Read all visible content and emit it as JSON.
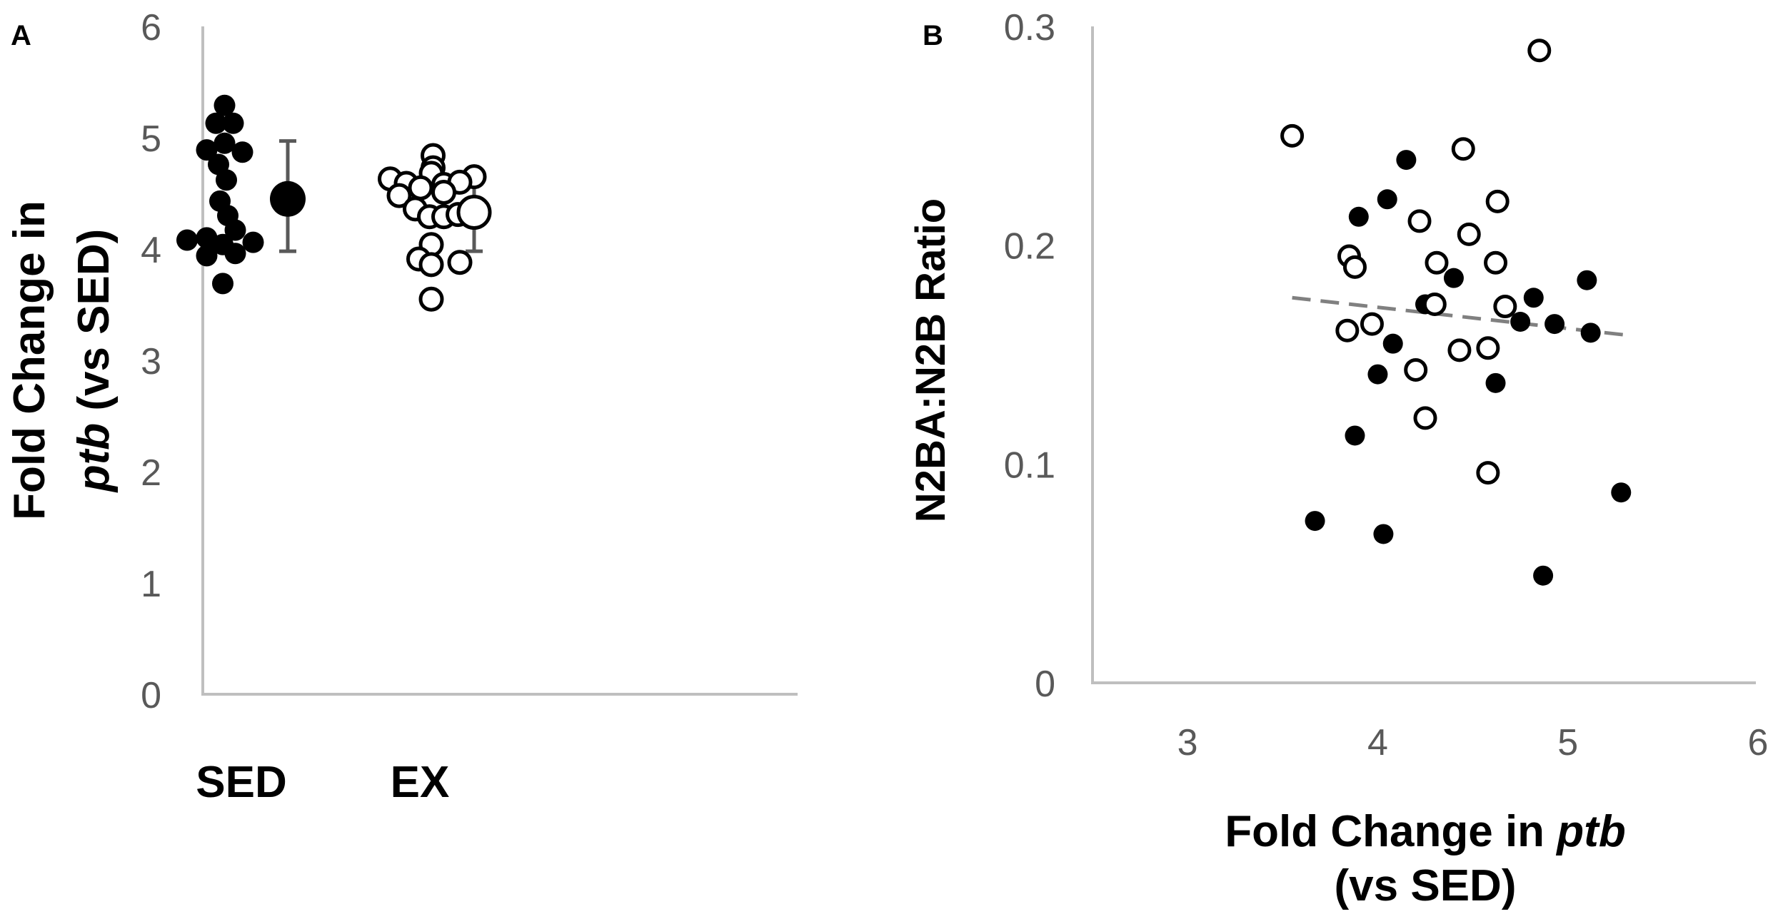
{
  "chart_data": [
    {
      "panel": "A",
      "type": "scatter",
      "title": "",
      "ylabel_line1": "Fold Change in",
      "ylabel_line2_italic": "ptb",
      "ylabel_line2_rest": " (vs SED)",
      "ylim": [
        0,
        6
      ],
      "yticks": [
        "0",
        "1",
        "2",
        "3",
        "4",
        "5",
        "6"
      ],
      "categories": [
        "SED",
        "EX"
      ],
      "grid": false,
      "series": [
        {
          "category": "SED",
          "filled": true,
          "points": [
            {
              "offset": 0.05,
              "value": 5.29
            },
            {
              "offset": -0.19,
              "value": 5.13
            },
            {
              "offset": 0.29,
              "value": 5.13
            },
            {
              "offset": 0.05,
              "value": 4.95
            },
            {
              "offset": -0.45,
              "value": 4.89
            },
            {
              "offset": 0.55,
              "value": 4.87
            },
            {
              "offset": -0.12,
              "value": 4.76
            },
            {
              "offset": 0.1,
              "value": 4.62
            },
            {
              "offset": -0.08,
              "value": 4.43
            },
            {
              "offset": 0.14,
              "value": 4.3
            },
            {
              "offset": 0.35,
              "value": 4.17
            },
            {
              "offset": -0.45,
              "value": 4.1
            },
            {
              "offset": -1.0,
              "value": 4.08
            },
            {
              "offset": 0.85,
              "value": 4.06
            },
            {
              "offset": 0.0,
              "value": 4.04
            },
            {
              "offset": -0.45,
              "value": 3.94
            },
            {
              "offset": 0.35,
              "value": 3.96
            },
            {
              "offset": 0.0,
              "value": 3.69
            }
          ]
        },
        {
          "category": "EX",
          "filled": false,
          "points": [
            {
              "offset": 0.65,
              "value": 4.84
            },
            {
              "offset": 0.65,
              "value": 4.73
            },
            {
              "offset": 0.6,
              "value": 4.68
            },
            {
              "offset": 1.8,
              "value": 4.65
            },
            {
              "offset": -0.55,
              "value": 4.63
            },
            {
              "offset": 0.95,
              "value": 4.58
            },
            {
              "offset": -0.1,
              "value": 4.59
            },
            {
              "offset": 1.4,
              "value": 4.6
            },
            {
              "offset": 0.3,
              "value": 4.55
            },
            {
              "offset": 0.95,
              "value": 4.51
            },
            {
              "offset": -0.3,
              "value": 4.48
            },
            {
              "offset": 0.15,
              "value": 4.36
            },
            {
              "offset": 0.55,
              "value": 4.29
            },
            {
              "offset": 0.95,
              "value": 4.29
            },
            {
              "offset": 1.35,
              "value": 4.31
            },
            {
              "offset": 1.75,
              "value": 4.33
            },
            {
              "offset": 0.6,
              "value": 4.04
            },
            {
              "offset": 0.25,
              "value": 3.91
            },
            {
              "offset": 1.4,
              "value": 3.88
            },
            {
              "offset": 0.6,
              "value": 3.86
            },
            {
              "offset": 0.6,
              "value": 3.55
            }
          ]
        }
      ],
      "summary": [
        {
          "category": "SED",
          "mean": 4.45,
          "err_low": 3.98,
          "err_high": 4.97,
          "filled": true
        },
        {
          "category": "EX",
          "mean": 4.33,
          "err_low": 3.98,
          "err_high": 4.67,
          "filled": false
        }
      ]
    },
    {
      "panel": "B",
      "type": "scatter",
      "title": "",
      "xlabel_line1_prefix": "Fold Change in ",
      "xlabel_line1_italic": "ptb",
      "xlabel_line2": "(vs SED)",
      "ylabel": "N2BA:N2B Ratio",
      "xlim": [
        2.5,
        6
      ],
      "ylim": [
        0,
        0.3
      ],
      "xticks": [
        "3",
        "4",
        "5",
        "6"
      ],
      "yticks": [
        "0",
        "0.1",
        "0.2",
        "0.3"
      ],
      "grid": false,
      "series": [
        {
          "name": "",
          "filled": true,
          "points": [
            [
              4.15,
              0.239
            ],
            [
              4.05,
              0.221
            ],
            [
              3.9,
              0.213
            ],
            [
              4.4,
              0.185
            ],
            [
              5.1,
              0.184
            ],
            [
              4.25,
              0.173
            ],
            [
              4.82,
              0.176
            ],
            [
              4.75,
              0.165
            ],
            [
              4.93,
              0.164
            ],
            [
              5.12,
              0.16
            ],
            [
              4.08,
              0.155
            ],
            [
              4.0,
              0.141
            ],
            [
              4.62,
              0.137
            ],
            [
              3.88,
              0.113
            ],
            [
              5.28,
              0.087
            ],
            [
              3.67,
              0.074
            ],
            [
              4.03,
              0.068
            ],
            [
              4.87,
              0.049
            ]
          ]
        },
        {
          "name": "",
          "filled": false,
          "points": [
            [
              4.85,
              0.289
            ],
            [
              3.55,
              0.25
            ],
            [
              4.45,
              0.244
            ],
            [
              4.63,
              0.22
            ],
            [
              4.22,
              0.211
            ],
            [
              4.48,
              0.205
            ],
            [
              3.85,
              0.195
            ],
            [
              4.31,
              0.192
            ],
            [
              4.62,
              0.192
            ],
            [
              3.88,
              0.19
            ],
            [
              4.3,
              0.173
            ],
            [
              4.67,
              0.172
            ],
            [
              3.97,
              0.164
            ],
            [
              3.84,
              0.161
            ],
            [
              4.58,
              0.153
            ],
            [
              4.43,
              0.152
            ],
            [
              4.2,
              0.143
            ],
            [
              4.25,
              0.121
            ],
            [
              4.58,
              0.096
            ]
          ]
        }
      ],
      "trendline": {
        "x": [
          3.55,
          5.3
        ],
        "y": [
          0.176,
          0.159
        ],
        "style": "dashed",
        "color": "#808080"
      }
    }
  ],
  "colors": {
    "axis": "#bfbfbf",
    "tick_text": "#595959",
    "marker": "#000000",
    "errorbar": "#595959",
    "trend": "#808080"
  }
}
